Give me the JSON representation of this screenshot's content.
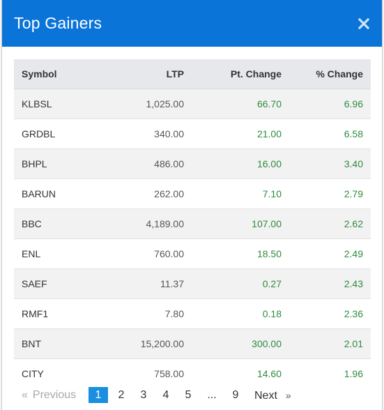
{
  "modal": {
    "title": "Top Gainers",
    "close_icon": "close-icon",
    "accent_color": "#0a74d9",
    "gain_color": "#2e8b3e"
  },
  "table": {
    "headers": {
      "symbol": "Symbol",
      "ltp": "LTP",
      "pt_change": "Pt. Change",
      "pct_change": "% Change"
    },
    "rows": [
      {
        "symbol": "KLBSL",
        "ltp": "1,025.00",
        "pt_change": "66.70",
        "pct_change": "6.96"
      },
      {
        "symbol": "GRDBL",
        "ltp": "340.00",
        "pt_change": "21.00",
        "pct_change": "6.58"
      },
      {
        "symbol": "BHPL",
        "ltp": "486.00",
        "pt_change": "16.00",
        "pct_change": "3.40"
      },
      {
        "symbol": "BARUN",
        "ltp": "262.00",
        "pt_change": "7.10",
        "pct_change": "2.79"
      },
      {
        "symbol": "BBC",
        "ltp": "4,189.00",
        "pt_change": "107.00",
        "pct_change": "2.62"
      },
      {
        "symbol": "ENL",
        "ltp": "760.00",
        "pt_change": "18.50",
        "pct_change": "2.49"
      },
      {
        "symbol": "SAEF",
        "ltp": "11.37",
        "pt_change": "0.27",
        "pct_change": "2.43"
      },
      {
        "symbol": "RMF1",
        "ltp": "7.80",
        "pt_change": "0.18",
        "pct_change": "2.36"
      },
      {
        "symbol": "BNT",
        "ltp": "15,200.00",
        "pt_change": "300.00",
        "pct_change": "2.01"
      },
      {
        "symbol": "CITY",
        "ltp": "758.00",
        "pt_change": "14.60",
        "pct_change": "1.96"
      }
    ]
  },
  "pagination": {
    "prev_arrow": "«",
    "prev_label": "Previous",
    "pages": [
      "1",
      "2",
      "3",
      "4",
      "5",
      "...",
      "9"
    ],
    "current_page": "1",
    "next_label": "Next",
    "next_arrow": "»"
  }
}
